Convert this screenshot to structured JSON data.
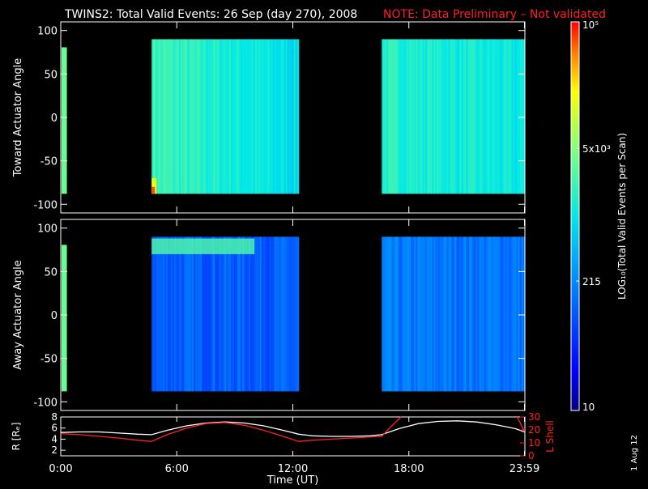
{
  "header": {
    "title": "TWINS2: Total Valid Events: 26 Sep (day 270), 2008",
    "note": "NOTE: Data Preliminary – Not validated"
  },
  "footer": {
    "date_stamp": "1 Aug 12"
  },
  "colors": {
    "background": "#000000",
    "foreground": "#ffffff",
    "note": "#ff2020",
    "lshell": "#ff2020",
    "r_curve": "#ffffff"
  },
  "chart_data": [
    {
      "type": "heatmap",
      "ylabel": "Toward Actuator Angle",
      "ylim": [
        -110,
        110
      ],
      "yticks": [
        100,
        50,
        0,
        -50,
        -100
      ],
      "xlim": [
        0,
        24
      ],
      "data_intervals_hours": [
        [
          4.7,
          12.3
        ],
        [
          16.6,
          23.98
        ]
      ],
      "edge_strip_hours": [
        0,
        0.15
      ],
      "angle_range": [
        -88,
        90
      ]
    },
    {
      "type": "heatmap",
      "ylabel": "Away Actuator Angle",
      "ylim": [
        -110,
        110
      ],
      "yticks": [
        100,
        50,
        0,
        -50,
        -100
      ],
      "xlim": [
        0,
        24
      ],
      "data_intervals_hours": [
        [
          4.7,
          12.3
        ],
        [
          16.6,
          23.98
        ]
      ],
      "edge_strip_hours": [
        0,
        0.15
      ],
      "angle_range": [
        -88,
        90
      ]
    },
    {
      "type": "line",
      "xlabel": "Time (UT)",
      "ylabel": "R [Rₑ]",
      "ylabel_right": "L Shell",
      "xlim": [
        0,
        24
      ],
      "xticks": [
        "0:00",
        "6:00",
        "12:00",
        "18:00",
        "23:59"
      ],
      "xtick_hours": [
        0,
        6,
        12,
        18,
        23.98
      ],
      "ylim": [
        1,
        8
      ],
      "yticks": [
        "8",
        "6",
        "4",
        "2"
      ],
      "yticks_values": [
        8,
        6,
        4,
        2
      ],
      "ylim_right": [
        0,
        30
      ],
      "yticks_right": [
        "30",
        "20",
        "10",
        "0"
      ],
      "yticks_right_values": [
        30,
        20,
        10,
        0
      ],
      "series": [
        {
          "color": "#ffffff",
          "x": [
            0,
            1,
            2,
            3,
            4,
            4.7,
            5.5,
            6.5,
            7.5,
            8.5,
            9.5,
            10.5,
            11.5,
            12.3,
            13,
            14,
            15,
            16,
            16.6,
            17.5,
            18.5,
            19.5,
            20.5,
            21.5,
            22.5,
            23.5,
            23.98
          ],
          "y": [
            5.2,
            5.3,
            5.3,
            5.1,
            4.9,
            4.8,
            5.6,
            6.4,
            6.9,
            7.1,
            6.9,
            6.4,
            5.6,
            4.9,
            4.6,
            4.5,
            4.5,
            4.6,
            4.8,
            5.9,
            6.8,
            7.2,
            7.3,
            7.1,
            6.6,
            5.9,
            5.3
          ]
        },
        {
          "color": "#ff2020",
          "x": [
            0,
            1,
            2,
            3,
            4,
            4.7,
            5.5,
            6.5,
            7.5,
            8.5,
            9.5,
            10.5,
            11.5,
            12.3,
            13,
            14,
            15,
            16,
            16.6,
            17,
            17.6
          ],
          "y": [
            5.0,
            4.8,
            4.5,
            4.2,
            3.8,
            3.6,
            4.8,
            6.0,
            6.8,
            7.0,
            6.5,
            5.6,
            4.5,
            3.6,
            3.8,
            4.0,
            4.2,
            4.4,
            4.5,
            6.0,
            8.0
          ]
        },
        {
          "color": "#ff2020",
          "x": [
            23.6,
            23.98
          ],
          "y": [
            8.0,
            5.4
          ]
        }
      ]
    },
    {
      "type": "heatmap",
      "ylabel": "LOG₁₀(Total Valid Events per Scan)",
      "colorbar_ticks": [
        "10⁵",
        "5x10³",
        "215",
        "10"
      ],
      "colorbar_tick_values": [
        100000,
        5000,
        215,
        10
      ],
      "scale": "log",
      "range": [
        10,
        100000
      ]
    }
  ]
}
